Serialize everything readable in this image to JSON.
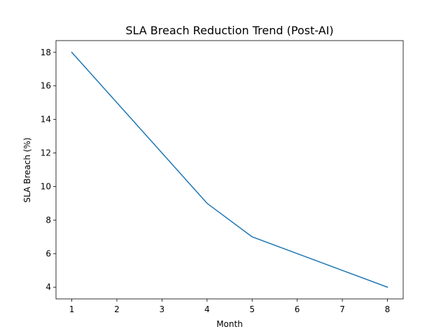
{
  "chart_data": {
    "type": "line",
    "title": "SLA Breach Reduction Trend (Post-AI)",
    "xlabel": "Month",
    "ylabel": "SLA Breach (%)",
    "x": [
      1,
      2,
      3,
      4,
      5,
      6,
      7,
      8
    ],
    "series": [
      {
        "values": [
          18,
          15,
          12,
          9,
          7,
          6,
          5,
          4
        ],
        "color": "#1f77b4"
      }
    ],
    "xticks": [
      1,
      2,
      3,
      4,
      5,
      6,
      7,
      8
    ],
    "yticks": [
      4,
      6,
      8,
      10,
      12,
      14,
      16,
      18
    ],
    "xlim": [
      0.65,
      8.35
    ],
    "ylim": [
      3.3,
      18.7
    ],
    "grid": false,
    "legend": "none"
  }
}
